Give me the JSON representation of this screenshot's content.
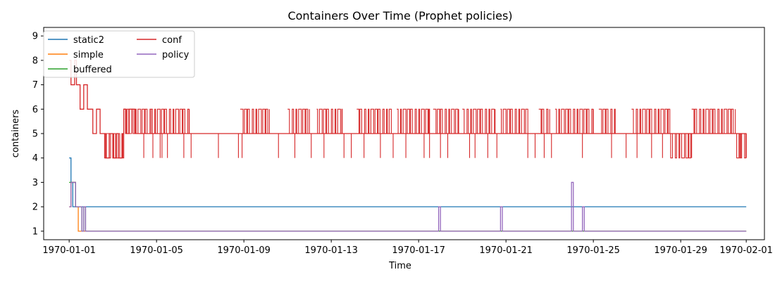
{
  "chart_data": {
    "type": "line",
    "title": "Containers Over Time (Prophet policies)",
    "xlabel": "Time",
    "ylabel": "containers",
    "x_range": [
      "1969-12-30T20:00",
      "1970-02-01T20:00"
    ],
    "ylim": [
      0.65,
      9.35
    ],
    "yticks": [
      1,
      2,
      3,
      4,
      5,
      6,
      7,
      8,
      9
    ],
    "xticks": [
      "1970-01-01",
      "1970-01-05",
      "1970-01-09",
      "1970-01-13",
      "1970-01-17",
      "1970-01-21",
      "1970-01-25",
      "1970-01-29",
      "1970-02-01"
    ],
    "grid": false,
    "legend": {
      "position": "top-left",
      "columns": 2
    },
    "series": [
      {
        "name": "static2",
        "color": "#1f77b4",
        "points": [
          [
            "1970-01-01T00:00",
            4
          ],
          [
            "1970-01-01T02:00",
            3
          ],
          [
            "1970-01-01T04:00",
            2
          ],
          [
            "1970-02-01T00:00",
            2
          ]
        ]
      },
      {
        "name": "simple",
        "color": "#ff7f0e",
        "points": [
          [
            "1970-01-01T00:00",
            2
          ],
          [
            "1970-01-01T02:00",
            3
          ],
          [
            "1970-01-01T06:00",
            3
          ],
          [
            "1970-01-01T07:00",
            2
          ],
          [
            "1970-01-01T08:00",
            2
          ],
          [
            "1970-01-01T10:00",
            1
          ],
          [
            "1970-02-01T00:00",
            1
          ]
        ]
      },
      {
        "name": "buffered",
        "color": "#2ca02c",
        "points": [
          [
            "1970-01-01T00:00",
            3
          ],
          [
            "1970-01-01T06:00",
            3
          ],
          [
            "1970-01-01T07:00",
            2
          ],
          [
            "1970-01-01T12:00",
            2
          ],
          [
            "1970-01-01T14:00",
            1
          ],
          [
            "1970-01-01T16:00",
            2
          ],
          [
            "1970-01-01T18:00",
            1
          ],
          [
            "1970-02-01T00:00",
            1
          ]
        ]
      },
      {
        "name": "conf",
        "color": "#d62728",
        "points": [
          [
            "1970-01-01T00:00",
            8
          ],
          [
            "1970-01-01T02:00",
            7
          ],
          [
            "1970-01-01T06:00",
            8
          ],
          [
            "1970-01-01T08:00",
            7
          ],
          [
            "1970-01-01T12:00",
            6
          ],
          [
            "1970-01-01T16:00",
            7
          ],
          [
            "1970-01-01T20:00",
            6
          ],
          [
            "1970-01-02T00:00",
            6
          ],
          [
            "1970-01-02T02:00",
            5
          ],
          [
            "1970-01-02T06:00",
            6
          ],
          [
            "1970-01-02T10:00",
            5
          ],
          [
            "1970-01-02T14:00",
            5
          ],
          [
            "1970-01-02T16:00",
            4
          ],
          [
            "1970-01-02T20:00",
            5
          ],
          [
            "1970-01-03T00:00",
            4
          ],
          [
            "1970-01-03T04:00",
            5
          ],
          [
            "1970-01-03T06:00",
            4
          ],
          [
            "1970-01-03T10:00",
            5
          ],
          [
            "1970-01-03T12:00",
            6
          ],
          [
            "1970-01-03T14:00",
            5
          ],
          [
            "1970-01-03T18:00",
            6
          ],
          [
            "1970-01-04T00:00",
            5
          ],
          [
            "1970-02-01T00:00",
            5
          ]
        ],
        "volatile_bands": [
          [
            "1970-01-02T14:00",
            "1970-01-03T12:00",
            4,
            5
          ],
          [
            "1970-01-03T12:00",
            "1970-01-04T18:00",
            5,
            6
          ],
          [
            "1970-01-04T18:00",
            "1970-01-06T12:00",
            5,
            6
          ],
          [
            "1970-01-08T20:00",
            "1970-01-10T04:00",
            5,
            6
          ],
          [
            "1970-01-11T00:00",
            "1970-01-12T00:00",
            5,
            6
          ],
          [
            "1970-01-12T08:00",
            "1970-01-13T12:00",
            5,
            6
          ],
          [
            "1970-01-14T04:00",
            "1970-01-15T18:00",
            5,
            6
          ],
          [
            "1970-01-16T00:00",
            "1970-01-17T12:00",
            5,
            6
          ],
          [
            "1970-01-17T16:00",
            "1970-01-18T20:00",
            5,
            6
          ],
          [
            "1970-01-19T00:00",
            "1970-01-20T12:00",
            5,
            6
          ],
          [
            "1970-01-20T18:00",
            "1970-01-22T00:00",
            5,
            6
          ],
          [
            "1970-01-22T12:00",
            "1970-01-23T00:00",
            5,
            6
          ],
          [
            "1970-01-23T06:00",
            "1970-01-25T00:00",
            5,
            6
          ],
          [
            "1970-01-25T06:00",
            "1970-01-26T00:00",
            5,
            6
          ],
          [
            "1970-01-26T18:00",
            "1970-01-28T12:00",
            5,
            6
          ],
          [
            "1970-01-28T12:00",
            "1970-01-29T12:00",
            4,
            5
          ],
          [
            "1970-01-29T12:00",
            "1970-01-31T12:00",
            5,
            6
          ],
          [
            "1970-01-31T12:00",
            "1970-02-01T00:00",
            4,
            5
          ]
        ],
        "dips": [
          [
            "1970-01-04T10:00",
            4
          ],
          [
            "1970-01-04T20:00",
            4
          ],
          [
            "1970-01-05T04:00",
            4
          ],
          [
            "1970-01-05T06:00",
            4
          ],
          [
            "1970-01-05T12:00",
            4
          ],
          [
            "1970-01-06T06:00",
            4
          ],
          [
            "1970-01-06T14:00",
            4
          ],
          [
            "1970-01-07T20:00",
            4
          ],
          [
            "1970-01-08T18:00",
            4
          ],
          [
            "1970-01-08T22:00",
            4
          ],
          [
            "1970-01-10T14:00",
            4
          ],
          [
            "1970-01-11T08:00",
            4
          ],
          [
            "1970-01-12T02:00",
            4
          ],
          [
            "1970-01-12T16:00",
            4
          ],
          [
            "1970-01-13T14:00",
            4
          ],
          [
            "1970-01-13T22:00",
            4
          ],
          [
            "1970-01-14T12:00",
            4
          ],
          [
            "1970-01-15T06:00",
            4
          ],
          [
            "1970-01-15T20:00",
            4
          ],
          [
            "1970-01-16T10:00",
            4
          ],
          [
            "1970-01-17T06:00",
            4
          ],
          [
            "1970-01-17T12:00",
            4
          ],
          [
            "1970-01-18T00:00",
            4
          ],
          [
            "1970-01-18T08:00",
            4
          ],
          [
            "1970-01-19T08:00",
            4
          ],
          [
            "1970-01-19T14:00",
            4
          ],
          [
            "1970-01-20T04:00",
            4
          ],
          [
            "1970-01-20T14:00",
            4
          ],
          [
            "1970-01-22T00:00",
            4
          ],
          [
            "1970-01-22T08:00",
            4
          ],
          [
            "1970-01-22T18:00",
            4
          ],
          [
            "1970-01-23T02:00",
            4
          ],
          [
            "1970-01-24T12:00",
            4
          ],
          [
            "1970-01-25T20:00",
            4
          ],
          [
            "1970-01-26T12:00",
            4
          ],
          [
            "1970-01-27T00:00",
            4
          ],
          [
            "1970-01-27T16:00",
            4
          ],
          [
            "1970-01-28T04:00",
            4
          ],
          [
            "1970-01-31T18:00",
            4
          ]
        ]
      },
      {
        "name": "policy",
        "color": "#9467bd",
        "points": [
          [
            "1970-01-01T00:00",
            2
          ],
          [
            "1970-01-01T02:00",
            3
          ],
          [
            "1970-01-01T06:00",
            3
          ],
          [
            "1970-01-01T07:00",
            2
          ],
          [
            "1970-01-01T12:00",
            2
          ],
          [
            "1970-01-01T14:00",
            1
          ],
          [
            "1970-01-01T16:00",
            2
          ],
          [
            "1970-01-01T18:00",
            1
          ],
          [
            "1970-01-17T22:00",
            1
          ],
          [
            "1970-01-17T22:00",
            2
          ],
          [
            "1970-01-18T00:00",
            1
          ],
          [
            "1970-01-20T18:00",
            1
          ],
          [
            "1970-01-20T18:00",
            2
          ],
          [
            "1970-01-20T20:00",
            1
          ],
          [
            "1970-01-24T00:00",
            1
          ],
          [
            "1970-01-24T00:00",
            3
          ],
          [
            "1970-01-24T02:00",
            1
          ],
          [
            "1970-01-24T12:00",
            1
          ],
          [
            "1970-01-24T12:00",
            2
          ],
          [
            "1970-01-24T14:00",
            1
          ],
          [
            "1970-02-01T00:00",
            1
          ]
        ]
      }
    ]
  }
}
